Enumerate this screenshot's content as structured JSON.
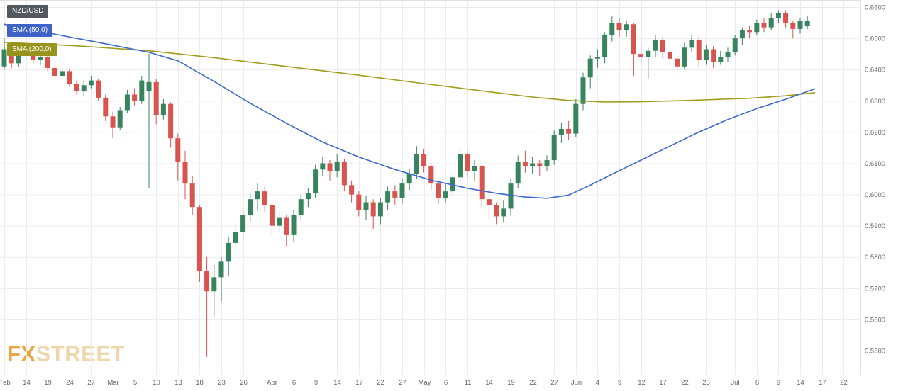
{
  "legend": {
    "symbol": "NZD/USD",
    "sma50": "SMA (50,0)",
    "sma200": "SMA (200,0)"
  },
  "watermark": {
    "part1": "FX",
    "part2": "STREET"
  },
  "chart_data": {
    "type": "candlestick",
    "symbol": "NZD/USD",
    "grid": true,
    "legend_position": "top-left",
    "colors": {
      "up": "#37845e",
      "down": "#d9544f",
      "grid": "#ececec",
      "axis_text": "#666666",
      "border": "#e0e0e0"
    },
    "y_ticks": [
      "0.6600",
      "0.6500",
      "0.6400",
      "0.6300",
      "0.6200",
      "0.6100",
      "0.6000",
      "0.5900",
      "0.5800",
      "0.5700",
      "0.5600",
      "0.5500"
    ],
    "ylim": [
      0.5425,
      0.6625
    ],
    "x_ticks": [
      {
        "i": 0,
        "label": "Feb"
      },
      {
        "i": 3,
        "label": "14"
      },
      {
        "i": 6,
        "label": "19"
      },
      {
        "i": 9,
        "label": "24"
      },
      {
        "i": 12,
        "label": "27"
      },
      {
        "i": 15,
        "label": "Mar"
      },
      {
        "i": 18,
        "label": "5"
      },
      {
        "i": 21,
        "label": "10"
      },
      {
        "i": 24,
        "label": "13"
      },
      {
        "i": 27,
        "label": "18"
      },
      {
        "i": 30,
        "label": "23"
      },
      {
        "i": 33,
        "label": "26"
      },
      {
        "i": 37,
        "label": "Apr"
      },
      {
        "i": 40,
        "label": "6"
      },
      {
        "i": 43,
        "label": "9"
      },
      {
        "i": 46,
        "label": "14"
      },
      {
        "i": 49,
        "label": "17"
      },
      {
        "i": 52,
        "label": "22"
      },
      {
        "i": 55,
        "label": "27"
      },
      {
        "i": 58,
        "label": "May"
      },
      {
        "i": 61,
        "label": "6"
      },
      {
        "i": 64,
        "label": "11"
      },
      {
        "i": 67,
        "label": "14"
      },
      {
        "i": 70,
        "label": "19"
      },
      {
        "i": 73,
        "label": "22"
      },
      {
        "i": 76,
        "label": "27"
      },
      {
        "i": 79,
        "label": "Jun"
      },
      {
        "i": 82,
        "label": "4"
      },
      {
        "i": 85,
        "label": "9"
      },
      {
        "i": 88,
        "label": "12"
      },
      {
        "i": 91,
        "label": "17"
      },
      {
        "i": 94,
        "label": "22"
      },
      {
        "i": 97,
        "label": "25"
      },
      {
        "i": 101,
        "label": "Jul"
      },
      {
        "i": 104,
        "label": "6"
      },
      {
        "i": 107,
        "label": "9"
      },
      {
        "i": 110,
        "label": "14"
      },
      {
        "i": 113,
        "label": "17"
      },
      {
        "i": 116,
        "label": "22"
      }
    ],
    "candles": [
      [
        0.641,
        0.65,
        0.64,
        0.6465
      ],
      [
        0.6465,
        0.648,
        0.6405,
        0.642
      ],
      [
        0.642,
        0.646,
        0.641,
        0.6445
      ],
      [
        0.6445,
        0.648,
        0.6435,
        0.6455
      ],
      [
        0.6455,
        0.6465,
        0.642,
        0.643
      ],
      [
        0.643,
        0.6455,
        0.6415,
        0.644
      ],
      [
        0.644,
        0.6445,
        0.6395,
        0.6405
      ],
      [
        0.6405,
        0.6415,
        0.637,
        0.638
      ],
      [
        0.638,
        0.6405,
        0.6365,
        0.6395
      ],
      [
        0.6395,
        0.64,
        0.6345,
        0.6355
      ],
      [
        0.6355,
        0.6365,
        0.632,
        0.633
      ],
      [
        0.633,
        0.6365,
        0.6315,
        0.635
      ],
      [
        0.635,
        0.638,
        0.634,
        0.6365
      ],
      [
        0.6365,
        0.637,
        0.63,
        0.631
      ],
      [
        0.631,
        0.632,
        0.6235,
        0.625
      ],
      [
        0.625,
        0.6265,
        0.618,
        0.6215
      ],
      [
        0.6215,
        0.628,
        0.6205,
        0.627
      ],
      [
        0.627,
        0.6335,
        0.626,
        0.632
      ],
      [
        0.632,
        0.634,
        0.6285,
        0.63
      ],
      [
        0.63,
        0.638,
        0.629,
        0.6365
      ],
      [
        0.633,
        0.645,
        0.602,
        0.636
      ],
      [
        0.636,
        0.637,
        0.6225,
        0.6255
      ],
      [
        0.6255,
        0.6305,
        0.624,
        0.629
      ],
      [
        0.629,
        0.6295,
        0.615,
        0.618
      ],
      [
        0.618,
        0.6195,
        0.6045,
        0.6105
      ],
      [
        0.6105,
        0.614,
        0.5985,
        0.6035
      ],
      [
        0.6035,
        0.606,
        0.5935,
        0.596
      ],
      [
        0.596,
        0.5965,
        0.572,
        0.5755
      ],
      [
        0.5755,
        0.58,
        0.548,
        0.569
      ],
      [
        0.569,
        0.5775,
        0.561,
        0.5735
      ],
      [
        0.5735,
        0.58,
        0.5655,
        0.5785
      ],
      [
        0.5785,
        0.5865,
        0.574,
        0.5845
      ],
      [
        0.5845,
        0.591,
        0.581,
        0.588
      ],
      [
        0.588,
        0.596,
        0.586,
        0.5935
      ],
      [
        0.5935,
        0.6005,
        0.591,
        0.5985
      ],
      [
        0.5985,
        0.6035,
        0.595,
        0.601
      ],
      [
        0.601,
        0.6025,
        0.5945,
        0.5965
      ],
      [
        0.5965,
        0.5975,
        0.587,
        0.59
      ],
      [
        0.59,
        0.5945,
        0.5875,
        0.5925
      ],
      [
        0.5925,
        0.5935,
        0.5835,
        0.587
      ],
      [
        0.587,
        0.595,
        0.585,
        0.5935
      ],
      [
        0.5935,
        0.6,
        0.592,
        0.5985
      ],
      [
        0.5985,
        0.602,
        0.596,
        0.6005
      ],
      [
        0.6005,
        0.6095,
        0.599,
        0.608
      ],
      [
        0.608,
        0.612,
        0.606,
        0.61
      ],
      [
        0.61,
        0.611,
        0.6045,
        0.6075
      ],
      [
        0.6075,
        0.613,
        0.6055,
        0.6105
      ],
      [
        0.6105,
        0.6115,
        0.601,
        0.603
      ],
      [
        0.603,
        0.6045,
        0.5975,
        0.6
      ],
      [
        0.6,
        0.601,
        0.593,
        0.595
      ],
      [
        0.595,
        0.5995,
        0.592,
        0.5975
      ],
      [
        0.5975,
        0.5985,
        0.589,
        0.593
      ],
      [
        0.593,
        0.599,
        0.5905,
        0.5975
      ],
      [
        0.5975,
        0.6025,
        0.595,
        0.601
      ],
      [
        0.601,
        0.603,
        0.5965,
        0.599
      ],
      [
        0.599,
        0.605,
        0.597,
        0.6035
      ],
      [
        0.6035,
        0.608,
        0.6015,
        0.6065
      ],
      [
        0.6065,
        0.6155,
        0.605,
        0.613
      ],
      [
        0.613,
        0.6145,
        0.607,
        0.609
      ],
      [
        0.609,
        0.61,
        0.6015,
        0.6035
      ],
      [
        0.6035,
        0.6045,
        0.597,
        0.599
      ],
      [
        0.599,
        0.6035,
        0.5975,
        0.601
      ],
      [
        0.601,
        0.607,
        0.5995,
        0.6055
      ],
      [
        0.6055,
        0.6145,
        0.6035,
        0.613
      ],
      [
        0.613,
        0.614,
        0.6055,
        0.6075
      ],
      [
        0.6075,
        0.611,
        0.6045,
        0.609
      ],
      [
        0.609,
        0.6095,
        0.596,
        0.5985
      ],
      [
        0.5985,
        0.6,
        0.592,
        0.5965
      ],
      [
        0.5965,
        0.5975,
        0.5905,
        0.593
      ],
      [
        0.593,
        0.598,
        0.591,
        0.5955
      ],
      [
        0.5955,
        0.605,
        0.5935,
        0.6035
      ],
      [
        0.6035,
        0.6125,
        0.602,
        0.6105
      ],
      [
        0.6105,
        0.614,
        0.607,
        0.609
      ],
      [
        0.609,
        0.612,
        0.6065,
        0.61
      ],
      [
        0.61,
        0.611,
        0.606,
        0.609
      ],
      [
        0.609,
        0.6125,
        0.6075,
        0.611
      ],
      [
        0.611,
        0.6205,
        0.6095,
        0.619
      ],
      [
        0.619,
        0.623,
        0.6165,
        0.621
      ],
      [
        0.621,
        0.6235,
        0.6175,
        0.6195
      ],
      [
        0.6195,
        0.6305,
        0.6185,
        0.629
      ],
      [
        0.629,
        0.639,
        0.627,
        0.6375
      ],
      [
        0.6375,
        0.6445,
        0.634,
        0.6435
      ],
      [
        0.6435,
        0.6465,
        0.6405,
        0.644
      ],
      [
        0.644,
        0.652,
        0.642,
        0.651
      ],
      [
        0.651,
        0.657,
        0.649,
        0.655
      ],
      [
        0.655,
        0.6565,
        0.6505,
        0.6525
      ],
      [
        0.6525,
        0.6555,
        0.6505,
        0.6545
      ],
      [
        0.6545,
        0.655,
        0.638,
        0.645
      ],
      [
        0.645,
        0.648,
        0.6415,
        0.644
      ],
      [
        0.644,
        0.647,
        0.637,
        0.646
      ],
      [
        0.646,
        0.651,
        0.644,
        0.6495
      ],
      [
        0.6495,
        0.6505,
        0.6435,
        0.6455
      ],
      [
        0.6455,
        0.647,
        0.641,
        0.6435
      ],
      [
        0.6435,
        0.6445,
        0.6385,
        0.641
      ],
      [
        0.641,
        0.6485,
        0.64,
        0.647
      ],
      [
        0.647,
        0.651,
        0.6455,
        0.6495
      ],
      [
        0.6495,
        0.6505,
        0.641,
        0.643
      ],
      [
        0.643,
        0.648,
        0.6415,
        0.6465
      ],
      [
        0.6465,
        0.6475,
        0.6405,
        0.6425
      ],
      [
        0.6425,
        0.646,
        0.6415,
        0.644
      ],
      [
        0.644,
        0.647,
        0.6425,
        0.6455
      ],
      [
        0.6455,
        0.651,
        0.6445,
        0.65
      ],
      [
        0.65,
        0.6535,
        0.648,
        0.6525
      ],
      [
        0.6525,
        0.654,
        0.65,
        0.652
      ],
      [
        0.652,
        0.656,
        0.651,
        0.655
      ],
      [
        0.655,
        0.6565,
        0.652,
        0.6535
      ],
      [
        0.6535,
        0.658,
        0.6525,
        0.6565
      ],
      [
        0.6565,
        0.659,
        0.655,
        0.658
      ],
      [
        0.658,
        0.659,
        0.6535,
        0.655
      ],
      [
        0.655,
        0.6555,
        0.65,
        0.653
      ],
      [
        0.653,
        0.6565,
        0.6515,
        0.6555
      ],
      [
        0.654,
        0.657,
        0.653,
        0.6555
      ]
    ],
    "overlays": [
      {
        "id": "sma-200-line",
        "name": "SMA (200,0)",
        "color": "#a09b1b",
        "points": [
          [
            0,
            0.6487
          ],
          [
            10,
            0.6476
          ],
          [
            20,
            0.646
          ],
          [
            29,
            0.6438
          ],
          [
            39,
            0.641
          ],
          [
            49,
            0.6382
          ],
          [
            58,
            0.6355
          ],
          [
            68,
            0.6326
          ],
          [
            73,
            0.6312
          ],
          [
            78,
            0.6301
          ],
          [
            83,
            0.6296
          ],
          [
            88,
            0.6297
          ],
          [
            93,
            0.63
          ],
          [
            98,
            0.6304
          ],
          [
            103,
            0.6308
          ],
          [
            108,
            0.6316
          ],
          [
            112,
            0.6326
          ]
        ]
      },
      {
        "id": "sma-50-line",
        "name": "SMA (50,0)",
        "color": "#3d68cc",
        "points": [
          [
            0,
            0.6545
          ],
          [
            5,
            0.6522
          ],
          [
            10,
            0.65
          ],
          [
            15,
            0.6478
          ],
          [
            20,
            0.6455
          ],
          [
            24,
            0.6428
          ],
          [
            29,
            0.6362
          ],
          [
            34,
            0.6292
          ],
          [
            39,
            0.6228
          ],
          [
            44,
            0.6168
          ],
          [
            49,
            0.612
          ],
          [
            54,
            0.608
          ],
          [
            59,
            0.6046
          ],
          [
            64,
            0.602
          ],
          [
            68,
            0.6004
          ],
          [
            72,
            0.5992
          ],
          [
            75,
            0.5988
          ],
          [
            78,
            0.5998
          ],
          [
            81,
            0.603
          ],
          [
            84,
            0.6065
          ],
          [
            88,
            0.611
          ],
          [
            92,
            0.6155
          ],
          [
            96,
            0.62
          ],
          [
            100,
            0.624
          ],
          [
            104,
            0.6275
          ],
          [
            108,
            0.6305
          ],
          [
            112,
            0.6338
          ]
        ]
      }
    ]
  }
}
